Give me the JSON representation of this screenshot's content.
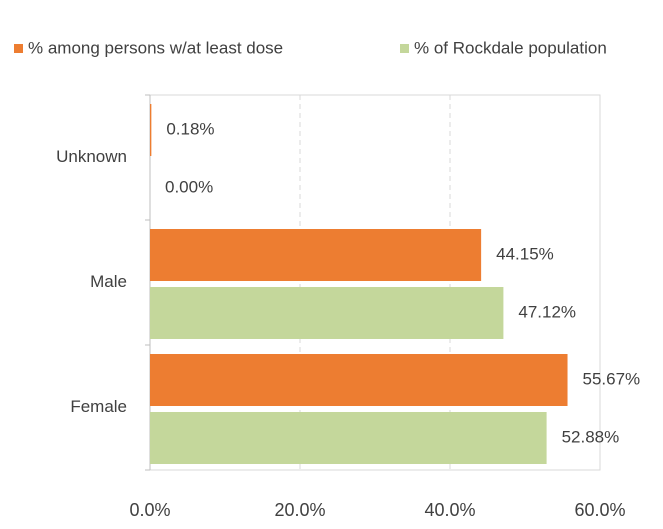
{
  "chart_data": {
    "type": "hbar",
    "categories": [
      "Unknown",
      "Male",
      "Female"
    ],
    "series": [
      {
        "name": "% among persons w/at least dose",
        "color": "#ed7d31",
        "values": [
          0.18,
          44.15,
          55.67
        ],
        "value_labels": [
          "0.18%",
          "44.15%",
          "55.67%"
        ]
      },
      {
        "name": "% of Rockdale population",
        "color": "#c4d79b",
        "values": [
          0.0,
          47.12,
          52.88
        ],
        "value_labels": [
          "0.00%",
          "47.12%",
          "52.88%"
        ]
      }
    ],
    "xlim": [
      0,
      60
    ],
    "xticks": [
      {
        "value": 0,
        "label": "0.0%"
      },
      {
        "value": 20,
        "label": "20.0%"
      },
      {
        "value": 40,
        "label": "40.0%"
      },
      {
        "value": 60,
        "label": "60.0%"
      }
    ],
    "grid": true,
    "legend": "top"
  }
}
